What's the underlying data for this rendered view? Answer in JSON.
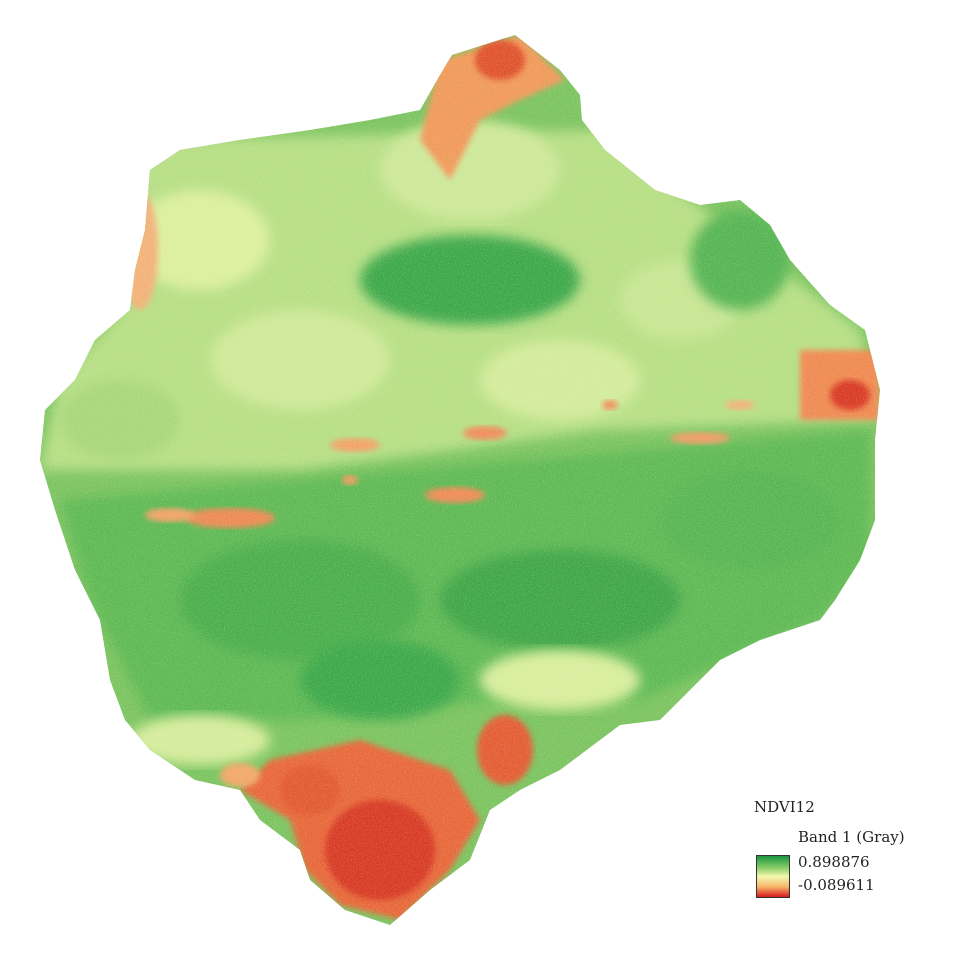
{
  "legend": {
    "layer_name": "NDVI12",
    "band_label": "Band 1 (Gray)",
    "max_value": "0.898876",
    "min_value": "-0.089611"
  },
  "colors": {
    "high": "#1a9641",
    "mid_high": "#8fcf6a",
    "mid": "#f4f7b0",
    "mid_low": "#f7b56a",
    "low": "#d7191c"
  }
}
